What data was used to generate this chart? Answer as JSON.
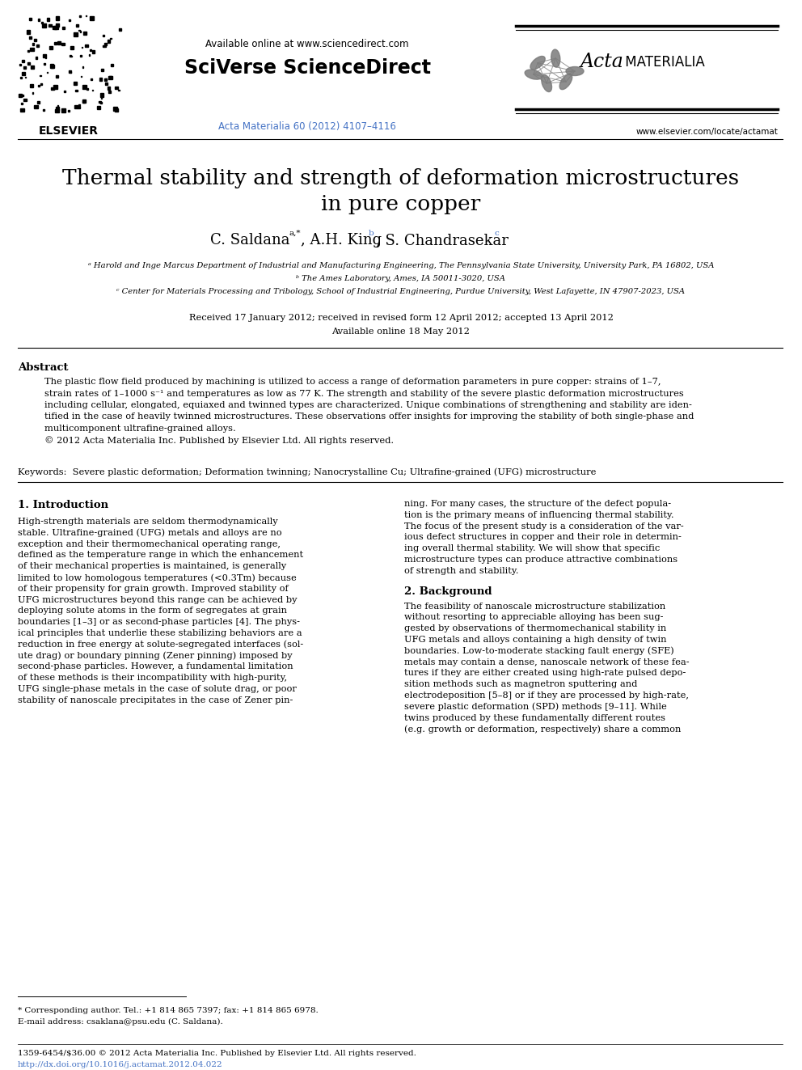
{
  "bg_color": "#ffffff",
  "header": {
    "available_online": "Available online at www.sciencedirect.com",
    "sciverse": "SciVerse ScienceDirect",
    "journal_ref": "Acta Materialia 60 (2012) 4107–4116",
    "journal_ref_color": "#4472c4",
    "website": "www.elsevier.com/locate/actamat",
    "elsevier_label": "ELSEVIER"
  },
  "title_line1": "Thermal stability and strength of deformation microstructures",
  "title_line2": "in pure copper",
  "affil_a": "ᵃ Harold and Inge Marcus Department of Industrial and Manufacturing Engineering, The Pennsylvania State University, University Park, PA 16802, USA",
  "affil_b": "ᵇ The Ames Laboratory, Ames, IA 50011-3020, USA",
  "affil_c": "ᶜ Center for Materials Processing and Tribology, School of Industrial Engineering, Purdue University, West Lafayette, IN 47907-2023, USA",
  "received": "Received 17 January 2012; received in revised form 12 April 2012; accepted 13 April 2012",
  "available": "Available online 18 May 2012",
  "abstract_title": "Abstract",
  "keywords": "Keywords:  Severe plastic deformation; Deformation twinning; Nanocrystalline Cu; Ultrafine-grained (UFG) microstructure",
  "section1_title": "1. Introduction",
  "section2_title": "2. Background",
  "footnote_star": "* Corresponding author. Tel.: +1 814 865 7397; fax: +1 814 865 6978.",
  "footnote_email": "E-mail address: csaklana@psu.edu (C. Saldana).",
  "footer_left": "1359-6454/$36.00 © 2012 Acta Materialia Inc. Published by Elsevier Ltd. All rights reserved.",
  "footer_doi": "http://dx.doi.org/10.1016/j.actamat.2012.04.022",
  "footer_doi_color": "#4472c4",
  "abstract_lines": [
    "The plastic flow field produced by machining is utilized to access a range of deformation parameters in pure copper: strains of 1–7,",
    "strain rates of 1–1000 s⁻¹ and temperatures as low as 77 K. The strength and stability of the severe plastic deformation microstructures",
    "including cellular, elongated, equiaxed and twinned types are characterized. Unique combinations of strengthening and stability are iden-",
    "tified in the case of heavily twinned microstructures. These observations offer insights for improving the stability of both single-phase and",
    "multicomponent ultrafine-grained alloys.",
    "© 2012 Acta Materialia Inc. Published by Elsevier Ltd. All rights reserved."
  ],
  "col1_lines": [
    "High-strength materials are seldom thermodynamically",
    "stable. Ultrafine-grained (UFG) metals and alloys are no",
    "exception and their thermomechanical operating range,",
    "defined as the temperature range in which the enhancement",
    "of their mechanical properties is maintained, is generally",
    "limited to low homologous temperatures (<0.3Tm) because",
    "of their propensity for grain growth. Improved stability of",
    "UFG microstructures beyond this range can be achieved by",
    "deploying solute atoms in the form of segregates at grain",
    "boundaries [1–3] or as second-phase particles [4]. The phys-",
    "ical principles that underlie these stabilizing behaviors are a",
    "reduction in free energy at solute-segregated interfaces (sol-",
    "ute drag) or boundary pinning (Zener pinning) imposed by",
    "second-phase particles. However, a fundamental limitation",
    "of these methods is their incompatibility with high-purity,",
    "UFG single-phase metals in the case of solute drag, or poor",
    "stability of nanoscale precipitates in the case of Zener pin-"
  ],
  "col2_lines_s1": [
    "ning. For many cases, the structure of the defect popula-",
    "tion is the primary means of influencing thermal stability.",
    "The focus of the present study is a consideration of the var-",
    "ious defect structures in copper and their role in determin-",
    "ing overall thermal stability. We will show that specific",
    "microstructure types can produce attractive combinations",
    "of strength and stability."
  ],
  "col2_lines_s2": [
    "The feasibility of nanoscale microstructure stabilization",
    "without resorting to appreciable alloying has been sug-",
    "gested by observations of thermomechanical stability in",
    "UFG metals and alloys containing a high density of twin",
    "boundaries. Low-to-moderate stacking fault energy (SFE)",
    "metals may contain a dense, nanoscale network of these fea-",
    "tures if they are either created using high-rate pulsed depo-",
    "sition methods such as magnetron sputtering and",
    "electrodeposition [5–8] or if they are processed by high-rate,",
    "severe plastic deformation (SPD) methods [9–11]. While",
    "twins produced by these fundamentally different routes",
    "(e.g. growth or deformation, respectively) share a common"
  ]
}
